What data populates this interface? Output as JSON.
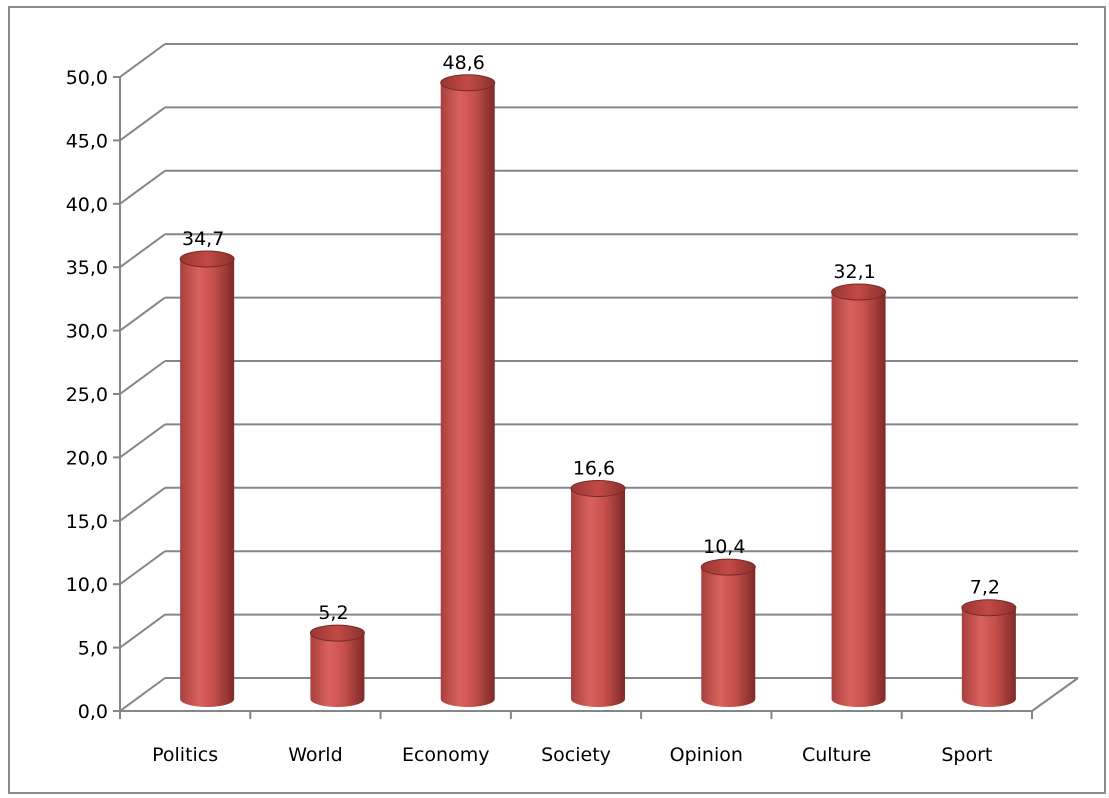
{
  "chart_data": {
    "type": "bar",
    "style": "3d-cylinder",
    "categories": [
      "Politics",
      "World",
      "Economy",
      "Society",
      "Opinion",
      "Culture",
      "Sport"
    ],
    "values": [
      34.7,
      5.2,
      48.6,
      16.6,
      10.4,
      32.1,
      7.2
    ],
    "data_labels": [
      "34,7",
      "5,2",
      "48,6",
      "16,6",
      "10,4",
      "32,1",
      "7,2"
    ],
    "y_ticks": [
      "0,0",
      "5,0",
      "10,0",
      "15,0",
      "20,0",
      "25,0",
      "30,0",
      "35,0",
      "40,0",
      "45,0",
      "50,0"
    ],
    "ylim": [
      0,
      50
    ],
    "ystep": 5,
    "title": "",
    "xlabel": "",
    "ylabel": "",
    "grid": true,
    "legend": "none",
    "colors": {
      "bar": "#c0504d",
      "bar_dark": "#8c2b28",
      "bar_light": "#e07a76",
      "grid": "#868686",
      "frame": "#8c8c8c"
    }
  }
}
